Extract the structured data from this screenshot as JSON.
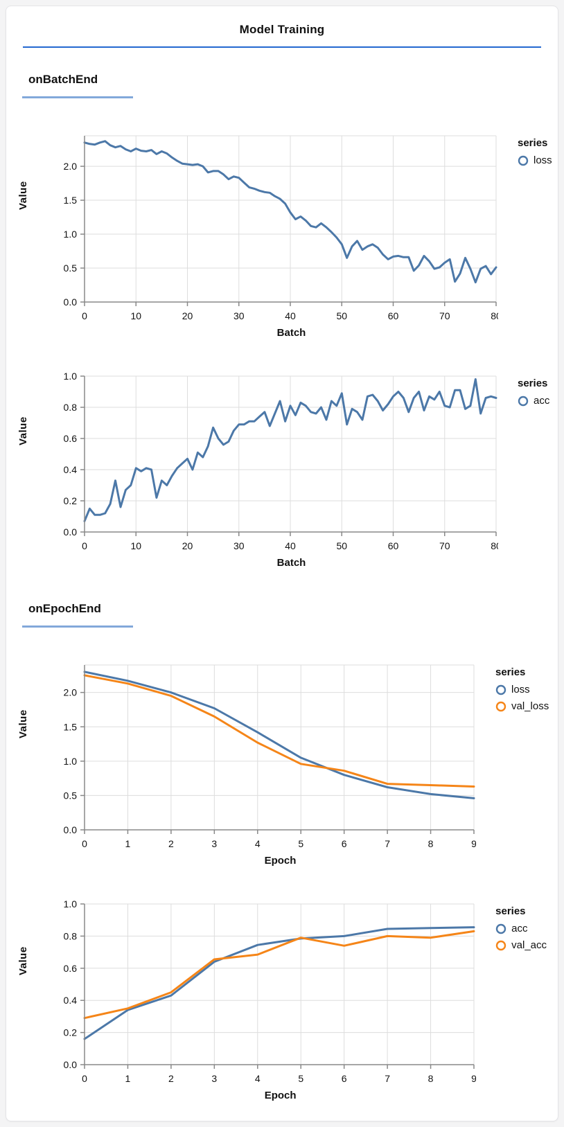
{
  "page": {
    "title": "Model Training"
  },
  "sections": [
    {
      "heading": "onBatchEnd"
    },
    {
      "heading": "onEpochEnd"
    }
  ],
  "colors": {
    "title_rule": "#2368d0",
    "section_rule": "#82a8da",
    "series_blue": "#4c78a8",
    "series_orange": "#f58518",
    "gridline": "#dddddd",
    "axis_domain": "#888888"
  },
  "chart_data": [
    {
      "type": "line",
      "section": "onBatchEnd",
      "xlabel": "Batch",
      "ylabel": "Value",
      "legend_title": "series",
      "legend_position": "right",
      "grid": true,
      "xlim": [
        0,
        80
      ],
      "ylim": [
        0,
        2.45
      ],
      "xticks": [
        {
          "v": 0,
          "label": "0"
        },
        {
          "v": 10,
          "label": "10"
        },
        {
          "v": 20,
          "label": "20"
        },
        {
          "v": 30,
          "label": "30"
        },
        {
          "v": 40,
          "label": "40"
        },
        {
          "v": 50,
          "label": "50"
        },
        {
          "v": 60,
          "label": "60"
        },
        {
          "v": 70,
          "label": "70"
        },
        {
          "v": 80,
          "label": "80"
        }
      ],
      "yticks": [
        {
          "v": 0,
          "label": "0.0"
        },
        {
          "v": 0.5,
          "label": "0.5"
        },
        {
          "v": 1,
          "label": "1.0"
        },
        {
          "v": 1.5,
          "label": "1.5"
        },
        {
          "v": 2,
          "label": "2.0"
        }
      ],
      "x_note": "x = batch index 0..80",
      "series": [
        {
          "name": "loss",
          "color": "#4c78a8",
          "values": [
            2.35,
            2.33,
            2.32,
            2.35,
            2.37,
            2.31,
            2.28,
            2.3,
            2.25,
            2.22,
            2.26,
            2.23,
            2.22,
            2.24,
            2.18,
            2.22,
            2.19,
            2.13,
            2.08,
            2.04,
            2.03,
            2.02,
            2.03,
            2.0,
            1.91,
            1.93,
            1.93,
            1.88,
            1.81,
            1.85,
            1.83,
            1.76,
            1.69,
            1.67,
            1.64,
            1.62,
            1.61,
            1.56,
            1.52,
            1.45,
            1.32,
            1.22,
            1.26,
            1.2,
            1.12,
            1.1,
            1.16,
            1.1,
            1.03,
            0.95,
            0.85,
            0.65,
            0.82,
            0.9,
            0.77,
            0.82,
            0.85,
            0.8,
            0.7,
            0.63,
            0.67,
            0.68,
            0.66,
            0.66,
            0.46,
            0.54,
            0.68,
            0.6,
            0.49,
            0.51,
            0.58,
            0.63,
            0.3,
            0.42,
            0.65,
            0.49,
            0.29,
            0.49,
            0.53,
            0.41,
            0.51
          ]
        }
      ]
    },
    {
      "type": "line",
      "section": "onBatchEnd",
      "xlabel": "Batch",
      "ylabel": "Value",
      "legend_title": "series",
      "legend_position": "right",
      "grid": true,
      "xlim": [
        0,
        80
      ],
      "ylim": [
        0,
        1.0
      ],
      "xticks": [
        {
          "v": 0,
          "label": "0"
        },
        {
          "v": 10,
          "label": "10"
        },
        {
          "v": 20,
          "label": "20"
        },
        {
          "v": 30,
          "label": "30"
        },
        {
          "v": 40,
          "label": "40"
        },
        {
          "v": 50,
          "label": "50"
        },
        {
          "v": 60,
          "label": "60"
        },
        {
          "v": 70,
          "label": "70"
        },
        {
          "v": 80,
          "label": "80"
        }
      ],
      "yticks": [
        {
          "v": 0,
          "label": "0.0"
        },
        {
          "v": 0.2,
          "label": "0.2"
        },
        {
          "v": 0.4,
          "label": "0.4"
        },
        {
          "v": 0.6,
          "label": "0.6"
        },
        {
          "v": 0.8,
          "label": "0.8"
        },
        {
          "v": 1,
          "label": "1.0"
        }
      ],
      "x_note": "x = batch index 0..80",
      "series": [
        {
          "name": "acc",
          "color": "#4c78a8",
          "values": [
            0.07,
            0.15,
            0.11,
            0.11,
            0.12,
            0.18,
            0.33,
            0.16,
            0.27,
            0.3,
            0.41,
            0.39,
            0.41,
            0.4,
            0.22,
            0.33,
            0.3,
            0.36,
            0.41,
            0.44,
            0.47,
            0.4,
            0.51,
            0.48,
            0.55,
            0.67,
            0.6,
            0.56,
            0.58,
            0.65,
            0.69,
            0.69,
            0.71,
            0.71,
            0.74,
            0.77,
            0.68,
            0.76,
            0.84,
            0.71,
            0.81,
            0.75,
            0.83,
            0.81,
            0.77,
            0.76,
            0.8,
            0.72,
            0.84,
            0.81,
            0.89,
            0.69,
            0.79,
            0.77,
            0.72,
            0.87,
            0.88,
            0.84,
            0.78,
            0.82,
            0.87,
            0.9,
            0.86,
            0.77,
            0.86,
            0.9,
            0.78,
            0.87,
            0.85,
            0.9,
            0.81,
            0.8,
            0.91,
            0.91,
            0.79,
            0.81,
            0.98,
            0.76,
            0.86,
            0.87,
            0.86
          ]
        }
      ]
    },
    {
      "type": "line",
      "section": "onEpochEnd",
      "xlabel": "Epoch",
      "ylabel": "Value",
      "legend_title": "series",
      "legend_position": "right",
      "grid": true,
      "xlim": [
        0,
        9
      ],
      "ylim": [
        0,
        2.4
      ],
      "xticks": [
        {
          "v": 0,
          "label": "0"
        },
        {
          "v": 1,
          "label": "1"
        },
        {
          "v": 2,
          "label": "2"
        },
        {
          "v": 3,
          "label": "3"
        },
        {
          "v": 4,
          "label": "4"
        },
        {
          "v": 5,
          "label": "5"
        },
        {
          "v": 6,
          "label": "6"
        },
        {
          "v": 7,
          "label": "7"
        },
        {
          "v": 8,
          "label": "8"
        },
        {
          "v": 9,
          "label": "9"
        }
      ],
      "yticks": [
        {
          "v": 0,
          "label": "0.0"
        },
        {
          "v": 0.5,
          "label": "0.5"
        },
        {
          "v": 1,
          "label": "1.0"
        },
        {
          "v": 1.5,
          "label": "1.5"
        },
        {
          "v": 2,
          "label": "2.0"
        }
      ],
      "x": [
        0,
        1,
        2,
        3,
        4,
        5,
        6,
        7,
        8,
        9
      ],
      "series": [
        {
          "name": "loss",
          "color": "#4c78a8",
          "values": [
            2.3,
            2.17,
            2.0,
            1.77,
            1.42,
            1.05,
            0.8,
            0.62,
            0.52,
            0.46
          ]
        },
        {
          "name": "val_loss",
          "color": "#f58518",
          "values": [
            2.25,
            2.13,
            1.95,
            1.65,
            1.27,
            0.96,
            0.86,
            0.67,
            0.65,
            0.63
          ]
        }
      ]
    },
    {
      "type": "line",
      "section": "onEpochEnd",
      "xlabel": "Epoch",
      "ylabel": "Value",
      "legend_title": "series",
      "legend_position": "right",
      "grid": true,
      "xlim": [
        0,
        9
      ],
      "ylim": [
        0,
        1.0
      ],
      "xticks": [
        {
          "v": 0,
          "label": "0"
        },
        {
          "v": 1,
          "label": "1"
        },
        {
          "v": 2,
          "label": "2"
        },
        {
          "v": 3,
          "label": "3"
        },
        {
          "v": 4,
          "label": "4"
        },
        {
          "v": 5,
          "label": "5"
        },
        {
          "v": 6,
          "label": "6"
        },
        {
          "v": 7,
          "label": "7"
        },
        {
          "v": 8,
          "label": "8"
        },
        {
          "v": 9,
          "label": "9"
        }
      ],
      "yticks": [
        {
          "v": 0,
          "label": "0.0"
        },
        {
          "v": 0.2,
          "label": "0.2"
        },
        {
          "v": 0.4,
          "label": "0.4"
        },
        {
          "v": 0.6,
          "label": "0.6"
        },
        {
          "v": 0.8,
          "label": "0.8"
        },
        {
          "v": 1,
          "label": "1.0"
        }
      ],
      "x": [
        0,
        1,
        2,
        3,
        4,
        5,
        6,
        7,
        8,
        9
      ],
      "series": [
        {
          "name": "acc",
          "color": "#4c78a8",
          "values": [
            0.16,
            0.34,
            0.43,
            0.64,
            0.745,
            0.785,
            0.8,
            0.845,
            0.85,
            0.855
          ]
        },
        {
          "name": "val_acc",
          "color": "#f58518",
          "values": [
            0.29,
            0.35,
            0.45,
            0.655,
            0.685,
            0.79,
            0.74,
            0.8,
            0.79,
            0.83
          ]
        }
      ]
    }
  ]
}
